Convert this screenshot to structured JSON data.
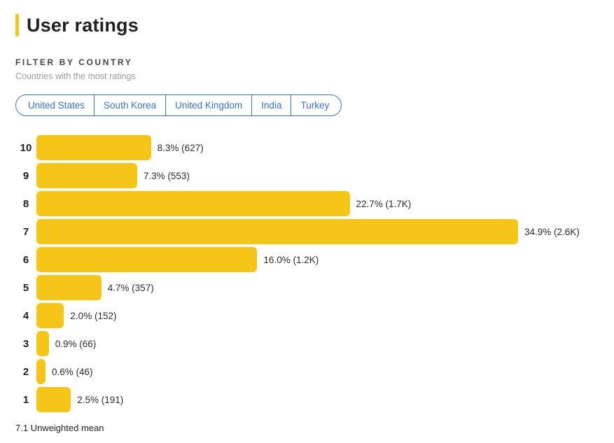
{
  "header": {
    "title": "User ratings",
    "accent_color": "#F5C518"
  },
  "filter": {
    "label": "FILTER BY COUNTRY",
    "subtitle": "Countries with the most ratings",
    "countries": [
      "United States",
      "South Korea",
      "United Kingdom",
      "India",
      "Turkey"
    ],
    "text_color": "#3672CB"
  },
  "chart_data": {
    "type": "bar",
    "orientation": "horizontal",
    "title": "User ratings",
    "categories": [
      "10",
      "9",
      "8",
      "7",
      "6",
      "5",
      "4",
      "3",
      "2",
      "1"
    ],
    "values": [
      8.3,
      7.3,
      22.7,
      34.9,
      16.0,
      4.7,
      2.0,
      0.9,
      0.6,
      2.5
    ],
    "counts": [
      "627",
      "553",
      "1.7K",
      "2.6K",
      "1.2K",
      "357",
      "152",
      "66",
      "46",
      "191"
    ],
    "labels": [
      "8.3% (627)",
      "7.3% (553)",
      "22.7% (1.7K)",
      "34.9% (2.6K)",
      "16.0% (1.2K)",
      "4.7% (357)",
      "2.0% (152)",
      "0.9% (66)",
      "0.6% (46)",
      "2.5% (191)"
    ],
    "xlim": [
      0,
      35
    ],
    "bar_color": "#F5C518",
    "grid": false,
    "legend": false
  },
  "footer": {
    "text": "7.1 Unweighted mean"
  }
}
